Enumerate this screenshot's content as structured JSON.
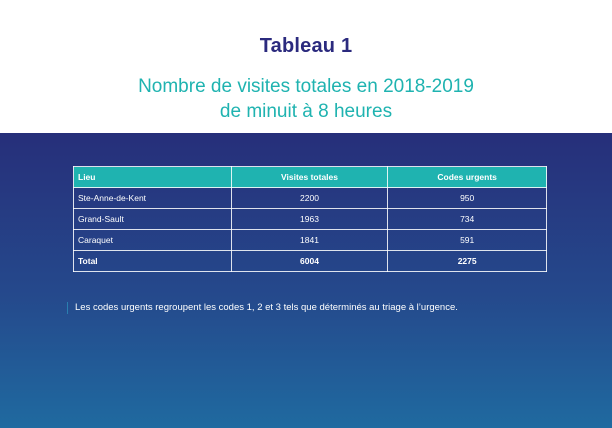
{
  "header": {
    "title": "Tableau 1",
    "subtitle_line1": "Nombre de visites totales en 2018-2019",
    "subtitle_line2": "de minuit à 8 heures"
  },
  "table": {
    "columns": [
      "Lieu",
      "Visites totales",
      "Codes urgents"
    ],
    "rows": [
      [
        "Ste-Anne-de-Kent",
        "2200",
        "950"
      ],
      [
        "Grand-Sault",
        "1963",
        "734"
      ],
      [
        "Caraquet",
        "1841",
        "591"
      ]
    ],
    "total": [
      "Total",
      "6004",
      "2275"
    ]
  },
  "note": {
    "text": "Les codes urgents regroupent les codes 1, 2 et 3 tels que déterminés au triage à l’urgence."
  },
  "colors": {
    "title": "#2b2a7e",
    "accent_teal": "#1fb3b0",
    "panel_top": "#262f7a",
    "panel_bottom": "#1f6aa0"
  }
}
